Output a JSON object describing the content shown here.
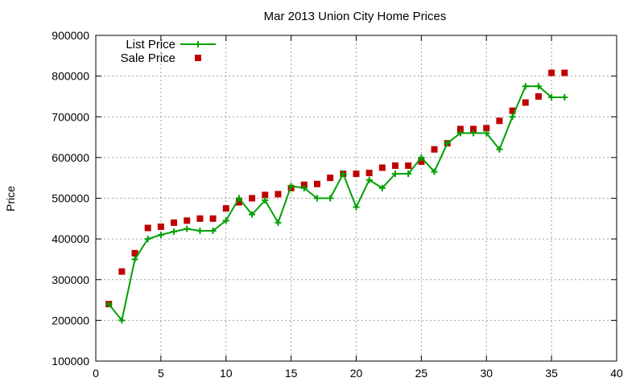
{
  "chart_data": {
    "type": "line",
    "title": "Mar 2013 Union City Home Prices",
    "xlabel": "",
    "ylabel": "Price",
    "xlim": [
      0,
      40
    ],
    "ylim": [
      100000,
      900000
    ],
    "x_ticks": [
      0,
      5,
      10,
      15,
      20,
      25,
      30,
      35,
      40
    ],
    "y_ticks": [
      100000,
      200000,
      300000,
      400000,
      500000,
      600000,
      700000,
      800000,
      900000
    ],
    "grid": true,
    "legend_position": "top-left",
    "series": [
      {
        "name": "List Price",
        "style": "line-points",
        "color": "#00a000",
        "x": [
          1,
          2,
          3,
          4,
          5,
          6,
          7,
          8,
          9,
          10,
          11,
          12,
          13,
          14,
          15,
          16,
          17,
          18,
          19,
          20,
          21,
          22,
          23,
          24,
          25,
          26,
          27,
          28,
          29,
          30,
          31,
          32,
          33,
          34,
          35,
          36
        ],
        "y": [
          240000,
          200000,
          350000,
          400000,
          410000,
          418000,
          425000,
          420000,
          420000,
          445000,
          500000,
          460000,
          495000,
          440000,
          530000,
          525000,
          500000,
          500000,
          560000,
          478000,
          545000,
          525000,
          560000,
          560000,
          600000,
          565000,
          635000,
          660000,
          660000,
          660000,
          620000,
          700000,
          775000,
          775000,
          748000,
          748000
        ]
      },
      {
        "name": "Sale Price",
        "style": "points",
        "color": "#c00000",
        "x": [
          1,
          2,
          3,
          4,
          5,
          6,
          7,
          8,
          9,
          10,
          11,
          12,
          13,
          14,
          15,
          16,
          17,
          18,
          19,
          20,
          21,
          22,
          23,
          24,
          25,
          26,
          27,
          28,
          29,
          30,
          31,
          32,
          33,
          34,
          35,
          36
        ],
        "y": [
          240000,
          320000,
          365000,
          427000,
          430000,
          440000,
          445000,
          450000,
          450000,
          475000,
          490000,
          500000,
          508000,
          510000,
          525000,
          533000,
          535000,
          550000,
          560000,
          560000,
          562000,
          575000,
          580000,
          580000,
          590000,
          620000,
          635000,
          670000,
          670000,
          672000,
          690000,
          715000,
          735000,
          750000,
          808000,
          808000
        ]
      }
    ]
  }
}
